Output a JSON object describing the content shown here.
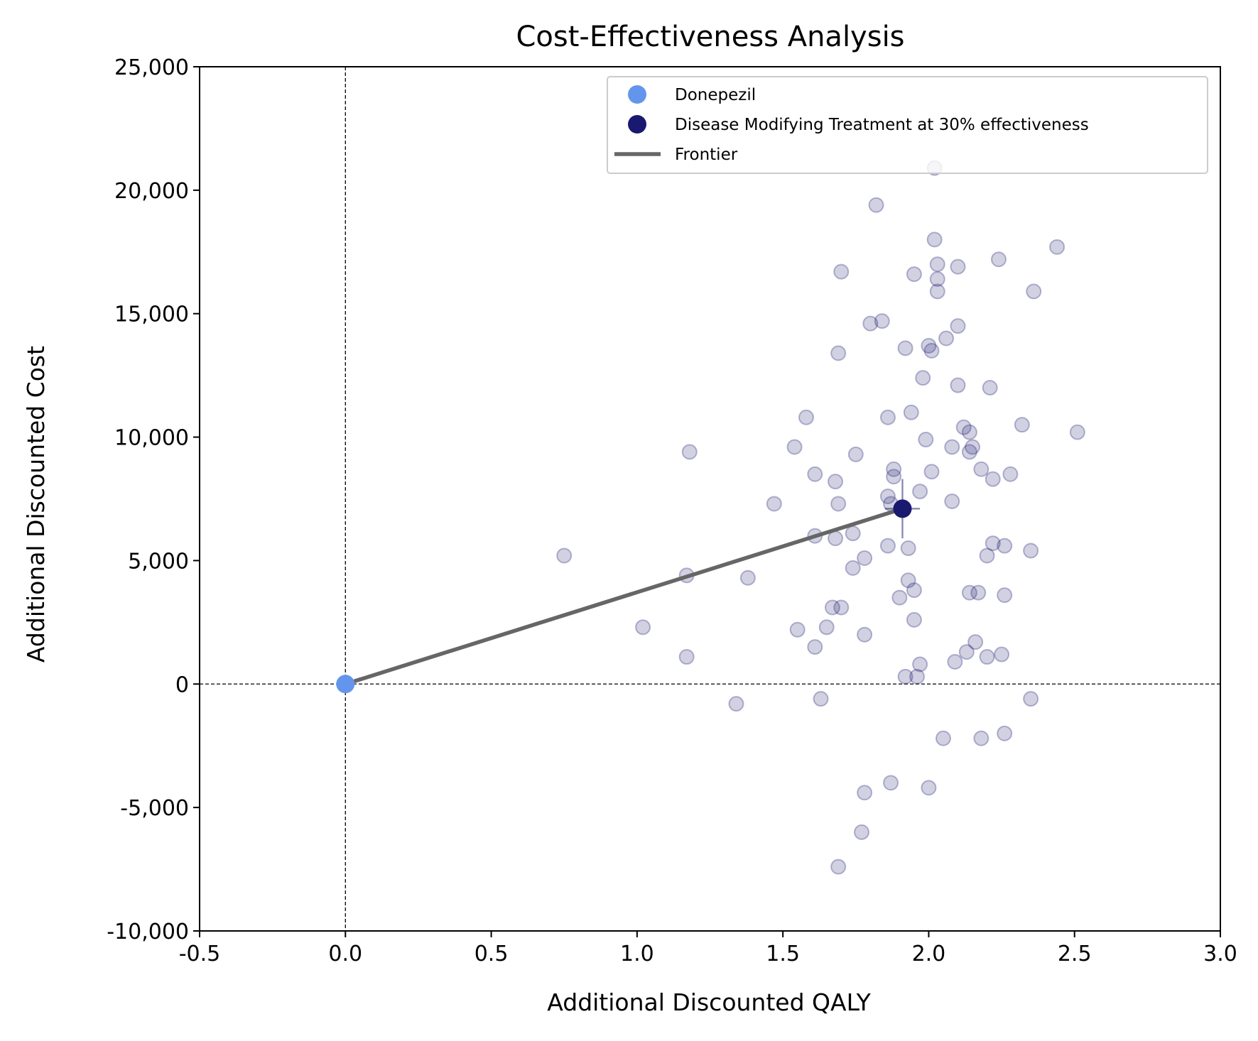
{
  "chart_data": {
    "type": "scatter",
    "title": "Cost-Effectiveness Analysis",
    "xlabel": "Additional Discounted QALY",
    "ylabel": "Additional Discounted Cost",
    "xlim": [
      -0.5,
      3.0
    ],
    "ylim": [
      -10000,
      25000
    ],
    "x_ticks": [
      -0.5,
      0.0,
      0.5,
      1.0,
      1.5,
      2.0,
      2.5,
      3.0
    ],
    "x_tick_labels": [
      "-0.5",
      "0.0",
      "0.5",
      "1.0",
      "1.5",
      "2.0",
      "2.5",
      "3.0"
    ],
    "y_ticks": [
      -10000,
      -5000,
      0,
      5000,
      10000,
      15000,
      20000,
      25000
    ],
    "y_tick_labels": [
      "-10,000",
      "-5,000",
      "0",
      "5,000",
      "10,000",
      "15,000",
      "20,000",
      "25,000"
    ],
    "grid": false,
    "reference_lines": {
      "x": 0,
      "y": 0,
      "style": "dashed"
    },
    "legend_placement": "top-right",
    "legend": [
      {
        "label": "Donepezil",
        "kind": "marker",
        "color": "#6495ED"
      },
      {
        "label": "Disease Modifying Treatment at 30% effectiveness",
        "kind": "marker",
        "color": "#191970"
      },
      {
        "label": "Frontier",
        "kind": "line",
        "color": "#666666"
      }
    ],
    "series": [
      {
        "name": "Donepezil",
        "color": "#6495ED",
        "points": [
          [
            0.0,
            0
          ]
        ]
      },
      {
        "name": "Disease Modifying Treatment at 30% effectiveness",
        "color": "#191970",
        "points": [
          [
            1.91,
            7100
          ]
        ],
        "error_x": 0.06,
        "error_y": 1200
      },
      {
        "name": "Frontier",
        "color": "#666666",
        "type": "line",
        "points": [
          [
            0.0,
            0
          ],
          [
            1.91,
            7100
          ]
        ]
      }
    ],
    "psa_samples": {
      "color": "#191970",
      "points": [
        [
          2.02,
          20900
        ],
        [
          1.82,
          19400
        ],
        [
          2.02,
          18000
        ],
        [
          2.44,
          17700
        ],
        [
          2.24,
          17200
        ],
        [
          2.03,
          17000
        ],
        [
          2.1,
          16900
        ],
        [
          1.7,
          16700
        ],
        [
          1.95,
          16600
        ],
        [
          2.03,
          16400
        ],
        [
          2.36,
          15900
        ],
        [
          2.03,
          15900
        ],
        [
          1.8,
          14600
        ],
        [
          1.84,
          14700
        ],
        [
          2.1,
          14500
        ],
        [
          2.06,
          14000
        ],
        [
          2.0,
          13700
        ],
        [
          1.92,
          13600
        ],
        [
          2.01,
          13500
        ],
        [
          1.69,
          13400
        ],
        [
          1.98,
          12400
        ],
        [
          2.1,
          12100
        ],
        [
          2.21,
          12000
        ],
        [
          1.94,
          11000
        ],
        [
          1.86,
          10800
        ],
        [
          1.58,
          10800
        ],
        [
          2.32,
          10500
        ],
        [
          2.12,
          10400
        ],
        [
          2.51,
          10200
        ],
        [
          2.14,
          10200
        ],
        [
          1.99,
          9900
        ],
        [
          2.08,
          9600
        ],
        [
          2.15,
          9600
        ],
        [
          1.54,
          9600
        ],
        [
          1.18,
          9400
        ],
        [
          1.75,
          9300
        ],
        [
          2.14,
          9400
        ],
        [
          2.18,
          8700
        ],
        [
          1.88,
          8700
        ],
        [
          2.01,
          8600
        ],
        [
          2.28,
          8500
        ],
        [
          1.88,
          8400
        ],
        [
          1.61,
          8500
        ],
        [
          2.22,
          8300
        ],
        [
          1.68,
          8200
        ],
        [
          1.97,
          7800
        ],
        [
          1.86,
          7600
        ],
        [
          1.87,
          7300
        ],
        [
          1.47,
          7300
        ],
        [
          1.69,
          7300
        ],
        [
          2.08,
          7400
        ],
        [
          1.61,
          6000
        ],
        [
          1.74,
          6100
        ],
        [
          1.68,
          5900
        ],
        [
          2.22,
          5700
        ],
        [
          2.26,
          5600
        ],
        [
          1.86,
          5600
        ],
        [
          1.93,
          5500
        ],
        [
          2.35,
          5400
        ],
        [
          0.75,
          5200
        ],
        [
          2.2,
          5200
        ],
        [
          1.78,
          5100
        ],
        [
          1.74,
          4700
        ],
        [
          1.17,
          4400
        ],
        [
          1.38,
          4300
        ],
        [
          1.93,
          4200
        ],
        [
          1.95,
          3800
        ],
        [
          2.14,
          3700
        ],
        [
          2.17,
          3700
        ],
        [
          2.26,
          3600
        ],
        [
          1.9,
          3500
        ],
        [
          1.67,
          3100
        ],
        [
          1.7,
          3100
        ],
        [
          1.95,
          2600
        ],
        [
          1.02,
          2300
        ],
        [
          1.65,
          2300
        ],
        [
          1.55,
          2200
        ],
        [
          1.78,
          2000
        ],
        [
          2.16,
          1700
        ],
        [
          1.61,
          1500
        ],
        [
          2.13,
          1300
        ],
        [
          2.25,
          1200
        ],
        [
          1.17,
          1100
        ],
        [
          2.2,
          1100
        ],
        [
          2.09,
          900
        ],
        [
          1.97,
          800
        ],
        [
          1.92,
          300
        ],
        [
          1.96,
          300
        ],
        [
          2.35,
          -600
        ],
        [
          1.63,
          -600
        ],
        [
          1.34,
          -800
        ],
        [
          2.26,
          -2000
        ],
        [
          2.05,
          -2200
        ],
        [
          2.18,
          -2200
        ],
        [
          1.87,
          -4000
        ],
        [
          2.0,
          -4200
        ],
        [
          1.78,
          -4400
        ],
        [
          1.77,
          -6000
        ],
        [
          1.69,
          -7400
        ]
      ]
    }
  }
}
